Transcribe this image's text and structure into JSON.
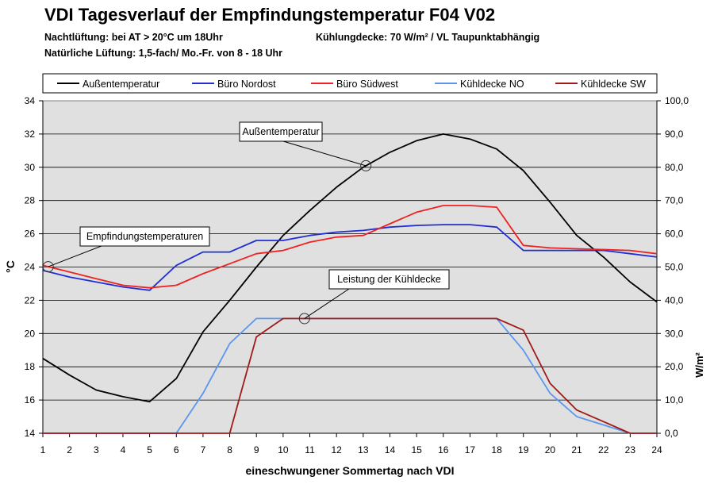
{
  "header": {
    "title": "VDI Tagesverlauf der Empfindungstemperatur F04 V02",
    "subtitle_left_1": "Nachtlüftung: bei AT > 20°C um 18Uhr",
    "subtitle_left_2": "Natürliche Lüftung: 1,5-fach/ Mo.-Fr. von 8 - 18 Uhr",
    "subtitle_right": "Kühlungdecke: 70 W/m² / VL Taupunktabhängig"
  },
  "chart_data": {
    "type": "line",
    "title": "VDI Tagesverlauf der Empfindungstemperatur F04 V02",
    "xlabel": "eineschwungener Sommertag nach VDI",
    "ylabel": "°C",
    "y2label": "W/m²",
    "x": [
      1,
      2,
      3,
      4,
      5,
      6,
      7,
      8,
      9,
      10,
      11,
      12,
      13,
      14,
      15,
      16,
      17,
      18,
      19,
      20,
      21,
      22,
      23,
      24
    ],
    "ylim": [
      14,
      34
    ],
    "y2lim": [
      0,
      100
    ],
    "yticks": [
      "14",
      "16",
      "18",
      "20",
      "22",
      "24",
      "26",
      "28",
      "30",
      "32",
      "34"
    ],
    "y2ticks": [
      "0,0",
      "10,0",
      "20,0",
      "30,0",
      "40,0",
      "50,0",
      "60,0",
      "70,0",
      "80,0",
      "90,0",
      "100,0"
    ],
    "legend_position": "top",
    "grid": true,
    "series": [
      {
        "name": "Außentemperatur",
        "axis": "left",
        "color": "#000000",
        "values": [
          18.5,
          17.5,
          16.6,
          16.2,
          15.9,
          17.3,
          20.1,
          22.0,
          24.0,
          25.9,
          27.4,
          28.8,
          30.0,
          30.9,
          31.6,
          32.0,
          31.7,
          31.1,
          29.8,
          27.9,
          25.9,
          24.6,
          23.1,
          21.9
        ]
      },
      {
        "name": "Büro Nordost",
        "axis": "left",
        "color": "#1f2fd4",
        "values": [
          23.8,
          23.4,
          23.1,
          22.8,
          22.6,
          24.1,
          24.9,
          24.9,
          25.6,
          25.6,
          25.9,
          26.1,
          26.2,
          26.4,
          26.5,
          26.55,
          26.55,
          26.4,
          25.0,
          25.0,
          25.0,
          25.0,
          24.8,
          24.6
        ]
      },
      {
        "name": "Büro Südwest",
        "axis": "left",
        "color": "#ee2222",
        "values": [
          24.1,
          23.7,
          23.3,
          22.9,
          22.75,
          22.9,
          23.6,
          24.2,
          24.8,
          25.0,
          25.5,
          25.8,
          25.9,
          26.6,
          27.3,
          27.7,
          27.7,
          27.6,
          25.3,
          25.15,
          25.1,
          25.05,
          25.0,
          24.8
        ]
      },
      {
        "name": "Kühldecke NO",
        "axis": "right",
        "color": "#5a96ee",
        "values": [
          0,
          0,
          0,
          0,
          0,
          0,
          12.0,
          27.0,
          34.5,
          34.5,
          34.5,
          34.5,
          34.5,
          34.5,
          34.5,
          34.5,
          34.5,
          34.5,
          25.0,
          12.0,
          5.0,
          2.5,
          0,
          0
        ]
      },
      {
        "name": "Kühldecke SW",
        "axis": "right",
        "color": "#a01a1a",
        "values": [
          0,
          0,
          0,
          0,
          0,
          0,
          0,
          0,
          29.0,
          34.5,
          34.5,
          34.5,
          34.5,
          34.5,
          34.5,
          34.5,
          34.5,
          34.5,
          31.0,
          15.0,
          7.0,
          3.5,
          0,
          0
        ]
      }
    ],
    "annotations": [
      {
        "text": "Außentemperatur",
        "series": 0,
        "x": 13.1
      },
      {
        "text": "Empfindungstemperaturen",
        "series": 2,
        "x": 1.2
      },
      {
        "text": "Leistung der Kühldecke",
        "series": 4,
        "x": 10.8
      }
    ]
  }
}
